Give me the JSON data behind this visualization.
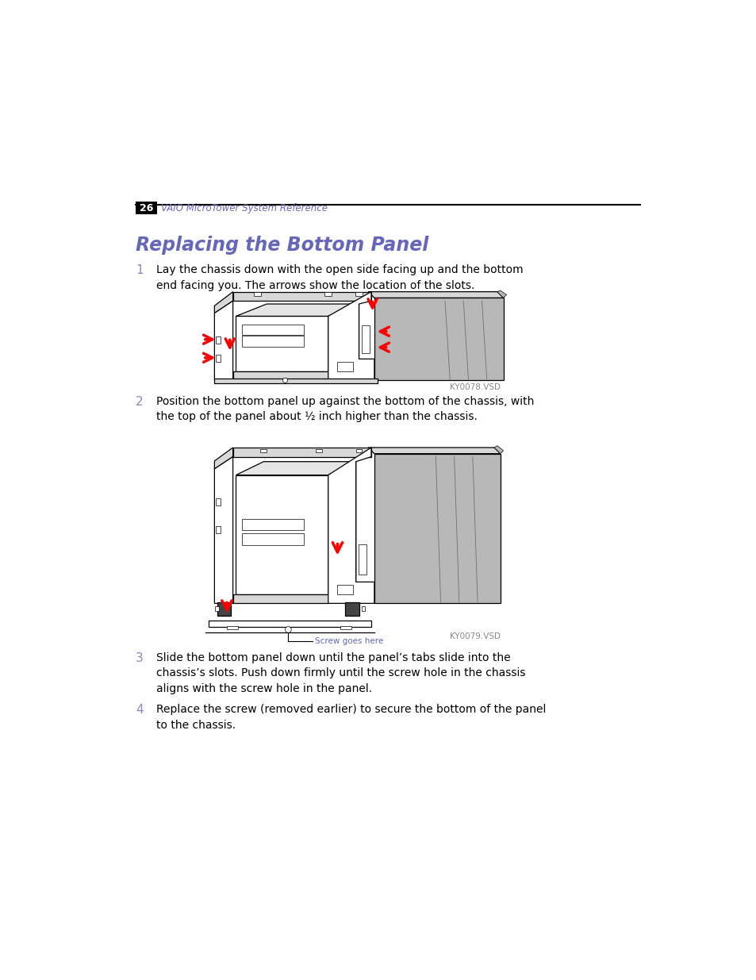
{
  "page_number": "26",
  "header_text": "VAIO MicroTower System Reference",
  "title": "Replacing the Bottom Panel",
  "step1_number": "1",
  "step1_text": "Lay the chassis down with the open side facing up and the bottom\nend facing you. The arrows show the location of the slots.",
  "step2_number": "2",
  "step2_text": "Position the bottom panel up against the bottom of the chassis, with\nthe top of the panel about ½ inch higher than the chassis.",
  "step3_number": "3",
  "step3_text": "Slide the bottom panel down until the panel’s tabs slide into the\nchassis’s slots. Push down firmly until the screw hole in the chassis\naligns with the screw hole in the panel.",
  "step4_number": "4",
  "step4_text": "Replace the screw (removed earlier) to secure the bottom of the panel\nto the chassis.",
  "fig1_caption": "KY0078.VSD",
  "fig2_caption": "KY0079.VSD",
  "fig2_annotation": "Screw goes here",
  "header_color": "#6666bb",
  "title_color": "#6666bb",
  "step_number_color": "#8888bb",
  "body_color": "#000000",
  "bg_color": "#ffffff",
  "page_num_bg": "#000000",
  "page_num_color": "#ffffff",
  "caption_color": "#888888",
  "annotation_color": "#6666bb",
  "lw_main": 0.9,
  "lw_thin": 0.5,
  "grey_light": "#d8d8d8",
  "grey_mid": "#b8b8b8",
  "grey_dark": "#909090",
  "grey_top": "#e5e5e5"
}
